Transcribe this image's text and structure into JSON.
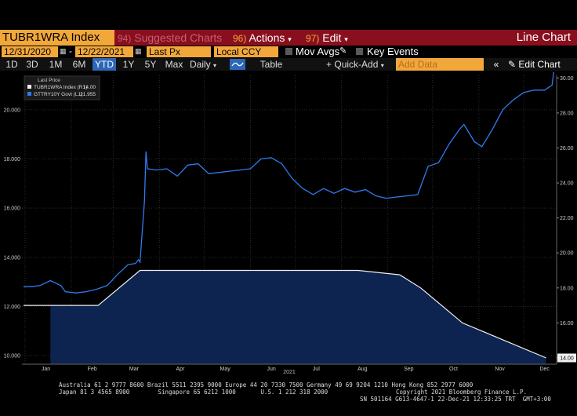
{
  "toolbar": {
    "ticker": "TUBR1WRA Index",
    "suggested": "Suggested Charts",
    "suggested_num": "94)",
    "actions_num": "96)",
    "actions": "Actions",
    "edit_num": "97)",
    "edit": "Edit",
    "chart_type": "Line Chart"
  },
  "controls": {
    "start_date": "12/31/2020",
    "end_date": "12/22/2021",
    "field": "Last Px",
    "currency": "Local CCY",
    "mov_avgs": "Mov Avgs",
    "key_events": "Key Events"
  },
  "ranges": [
    "1D",
    "3D",
    "1M",
    "6M",
    "YTD",
    "1Y",
    "5Y",
    "Max"
  ],
  "active_range": "YTD",
  "periodicity": "Daily",
  "table": "Table",
  "quick_add": "Quick-Add",
  "add_data_placeholder": "Add Data",
  "edit_chart": "Edit Chart",
  "footer": {
    "line1": "Australia 61 2 9777 8600 Brazil 5511 2395 9000 Europe 44 20 7330 7500 Germany 49 69 9204 1210 Hong Kong 852 2977 6000",
    "line2": "Japan 81 3 4565 8900        Singapore 65 6212 1000       U.S. 1 212 318 2000",
    "copyright": "Copyright 2021 Bloomberg Finance L.P.",
    "sn": "SN 501164 G613-4647-1 22-Dec-21 12:33:25 TRT  GMT+3:00"
  },
  "colors": {
    "orange": "#f2a73b",
    "red": "#8a0f1e",
    "blue_line": "#2f7bef",
    "area_fill": "#0d2350",
    "area_line": "#f0f0f0"
  },
  "chart_data": {
    "type": "line",
    "legend_title": "Last Price",
    "legend_placement": "top-left",
    "x_axis_label": "2021",
    "x_ticks": [
      "Jan",
      "Feb",
      "Mar",
      "Apr",
      "May",
      "Jun",
      "Jul",
      "Aug",
      "Sep",
      "Oct",
      "Nov",
      "Dec"
    ],
    "x_range": [
      "2020-12-31",
      "2021-12-22"
    ],
    "left_axis": {
      "min": 10,
      "max": 21,
      "ticks": [
        "10.000",
        "12.000",
        "14.000",
        "16.000",
        "18.000",
        "20.000"
      ]
    },
    "right_axis": {
      "min": 14,
      "max": 30,
      "ticks": [
        "14.00",
        "16.00",
        "18.00",
        "20.00",
        "22.00",
        "24.00",
        "26.00",
        "28.00",
        "30.00"
      ]
    },
    "series": [
      {
        "name": "TUBR1WRA Index (R1)",
        "last": "14.00",
        "axis": "right",
        "style": "area",
        "color": "#f0f0f0",
        "points": [
          [
            "2020-12-31",
            17.0
          ],
          [
            "2021-01-20",
            17.0
          ],
          [
            "2021-02-19",
            17.0
          ],
          [
            "2021-03-19",
            19.0
          ],
          [
            "2021-04-15",
            19.0
          ],
          [
            "2021-05-20",
            19.0
          ],
          [
            "2021-06-24",
            19.0
          ],
          [
            "2021-07-14",
            19.0
          ],
          [
            "2021-08-12",
            19.0
          ],
          [
            "2021-09-09",
            18.75
          ],
          [
            "2021-09-23",
            18.0
          ],
          [
            "2021-10-21",
            16.0
          ],
          [
            "2021-11-18",
            15.0
          ],
          [
            "2021-12-16",
            14.0
          ]
        ]
      },
      {
        "name": "GTTRY10Y Govt (L1)",
        "last": "21.955",
        "axis": "left",
        "style": "line",
        "color": "#2f7bef",
        "points": [
          [
            "2020-12-31",
            12.8
          ],
          [
            "2021-01-05",
            12.8
          ],
          [
            "2021-01-11",
            12.85
          ],
          [
            "2021-01-18",
            13.05
          ],
          [
            "2021-01-25",
            12.85
          ],
          [
            "2021-01-28",
            12.6
          ],
          [
            "2021-02-04",
            12.55
          ],
          [
            "2021-02-11",
            12.6
          ],
          [
            "2021-02-18",
            12.7
          ],
          [
            "2021-02-25",
            12.85
          ],
          [
            "2021-03-04",
            13.3
          ],
          [
            "2021-03-11",
            13.7
          ],
          [
            "2021-03-16",
            13.75
          ],
          [
            "2021-03-18",
            13.9
          ],
          [
            "2021-03-19",
            13.8
          ],
          [
            "2021-03-22",
            16.3
          ],
          [
            "2021-03-23",
            18.3
          ],
          [
            "2021-03-24",
            17.6
          ],
          [
            "2021-03-30",
            17.55
          ],
          [
            "2021-04-06",
            17.6
          ],
          [
            "2021-04-13",
            17.3
          ],
          [
            "2021-04-20",
            17.75
          ],
          [
            "2021-04-27",
            17.8
          ],
          [
            "2021-05-04",
            17.4
          ],
          [
            "2021-05-11",
            17.45
          ],
          [
            "2021-05-18",
            17.5
          ],
          [
            "2021-05-25",
            17.55
          ],
          [
            "2021-06-01",
            17.6
          ],
          [
            "2021-06-08",
            18.0
          ],
          [
            "2021-06-15",
            18.05
          ],
          [
            "2021-06-22",
            17.8
          ],
          [
            "2021-06-29",
            17.2
          ],
          [
            "2021-07-06",
            16.8
          ],
          [
            "2021-07-13",
            16.55
          ],
          [
            "2021-07-20",
            16.8
          ],
          [
            "2021-07-27",
            16.6
          ],
          [
            "2021-08-03",
            16.8
          ],
          [
            "2021-08-10",
            16.65
          ],
          [
            "2021-08-17",
            16.75
          ],
          [
            "2021-08-24",
            16.5
          ],
          [
            "2021-08-31",
            16.4
          ],
          [
            "2021-09-07",
            16.45
          ],
          [
            "2021-09-14",
            16.5
          ],
          [
            "2021-09-21",
            16.55
          ],
          [
            "2021-09-28",
            17.7
          ],
          [
            "2021-10-05",
            17.85
          ],
          [
            "2021-10-12",
            18.6
          ],
          [
            "2021-10-19",
            19.2
          ],
          [
            "2021-10-22",
            19.4
          ],
          [
            "2021-10-29",
            18.7
          ],
          [
            "2021-11-03",
            18.5
          ],
          [
            "2021-11-10",
            19.2
          ],
          [
            "2021-11-17",
            20.0
          ],
          [
            "2021-11-24",
            20.4
          ],
          [
            "2021-12-01",
            20.7
          ],
          [
            "2021-12-08",
            20.8
          ],
          [
            "2021-12-15",
            20.8
          ],
          [
            "2021-12-20",
            21.0
          ],
          [
            "2021-12-22",
            21.955
          ]
        ]
      }
    ]
  }
}
